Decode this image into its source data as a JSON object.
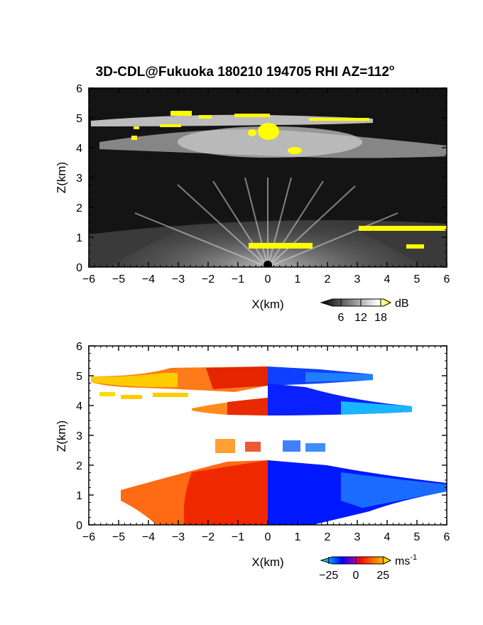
{
  "figure": {
    "title": "3D-CDL@Fukuoka 180210 194705 RHI AZ=112",
    "title_sup": "o"
  },
  "chart_data": [
    {
      "type": "heatmap",
      "name": "reflectivity-panel",
      "xlabel": "X(km)",
      "ylabel": "Z(km)",
      "xlim": [
        -6,
        6
      ],
      "ylim": [
        0,
        6
      ],
      "xticks": [
        "-6",
        "-5",
        "-4",
        "-3",
        "-2",
        "-1",
        "0",
        "1",
        "2",
        "3",
        "4",
        "5",
        "6"
      ],
      "yticks": [
        "0",
        "1",
        "2",
        "3",
        "4",
        "5",
        "6"
      ],
      "background": "#111111",
      "colorbar": {
        "unit": "dB",
        "ticks": [
          "6",
          "12",
          "18"
        ],
        "tick_values": [
          6,
          12,
          18
        ],
        "range": [
          0,
          21
        ],
        "colors": [
          "#000000",
          "#ffffff",
          "#ffff00"
        ]
      },
      "features": [
        {
          "kind": "upper-layer",
          "x": [
            -6,
            3.5
          ],
          "z": [
            4.6,
            5.0
          ],
          "intensity_db": 12
        },
        {
          "kind": "mid-layer",
          "x": [
            -6,
            6
          ],
          "z": [
            3.8,
            4.4
          ],
          "intensity_db": 10
        },
        {
          "kind": "strong-core",
          "x": [
            -0.8,
            0.4
          ],
          "z": [
            4.2,
            4.6
          ],
          "intensity_db": 20
        },
        {
          "kind": "strong-core",
          "x": [
            -3.3,
            -2.5
          ],
          "z": [
            5.05,
            5.2
          ],
          "intensity_db": 20
        },
        {
          "kind": "strong-core",
          "x": [
            0.7,
            1.2
          ],
          "z": [
            3.8,
            3.95
          ],
          "intensity_db": 20
        },
        {
          "kind": "strong-band",
          "x": [
            3.2,
            6
          ],
          "z": [
            1.2,
            1.4
          ],
          "intensity_db": 19
        },
        {
          "kind": "strong-band",
          "x": [
            -0.6,
            1.6
          ],
          "z": [
            0.6,
            0.75
          ],
          "intensity_db": 19
        },
        {
          "kind": "low-level-cone",
          "x": [
            -6,
            6
          ],
          "z": [
            0,
            2.2
          ],
          "intensity_db": 9
        }
      ]
    },
    {
      "type": "heatmap",
      "name": "doppler-velocity-panel",
      "xlabel": "X(km)",
      "ylabel": "Z(km)",
      "xlim": [
        -6,
        6
      ],
      "ylim": [
        0,
        6
      ],
      "xticks": [
        "-6",
        "-5",
        "-4",
        "-3",
        "-2",
        "-1",
        "0",
        "1",
        "2",
        "3",
        "4",
        "5",
        "6"
      ],
      "yticks": [
        "0",
        "1",
        "2",
        "3",
        "4",
        "5",
        "6"
      ],
      "background": "#ffffff",
      "colorbar": {
        "unit": "ms",
        "unit_sup": "-1",
        "ticks": [
          "−25",
          "0",
          "25"
        ],
        "tick_values": [
          -25,
          0,
          25
        ],
        "range": [
          -32,
          32
        ],
        "colors": [
          "#00ffff",
          "#0000ff",
          "#ff0000",
          "#ff8800",
          "#ffff00"
        ]
      },
      "regions": [
        {
          "x": [
            -6,
            3.5
          ],
          "z": [
            4.6,
            5.3
          ],
          "velocity_note": "upper layer, negative x = receding (warm), positive x = approaching (cool)"
        },
        {
          "x": [
            -2.5,
            4.8
          ],
          "z": [
            3.7,
            4.5
          ]
        },
        {
          "x": [
            -1.5,
            2.0
          ],
          "z": [
            2.2,
            3.0
          ]
        },
        {
          "x": [
            -5,
            6
          ],
          "z": [
            0,
            2.0
          ]
        }
      ]
    }
  ]
}
